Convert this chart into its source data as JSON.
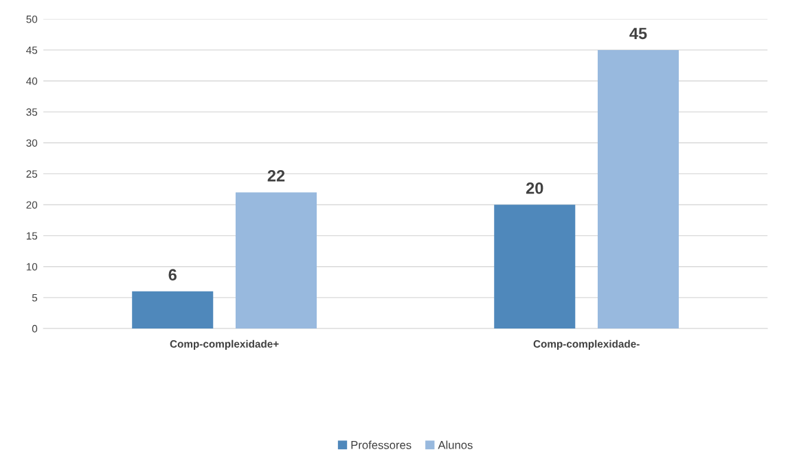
{
  "chart_data": {
    "type": "bar",
    "categories": [
      "Comp-complexidade+",
      "Comp-complexidade-"
    ],
    "series": [
      {
        "name": "Professores",
        "color": "#4f88bb",
        "values": [
          6,
          20
        ]
      },
      {
        "name": "Alunos",
        "color": "#98b9de",
        "values": [
          22,
          45
        ]
      }
    ],
    "ylim": [
      0,
      50
    ],
    "yticks": [
      0,
      5,
      10,
      15,
      20,
      25,
      30,
      35,
      40,
      45,
      50
    ],
    "grid": "y",
    "legend": "bottom",
    "data_labels": true
  }
}
